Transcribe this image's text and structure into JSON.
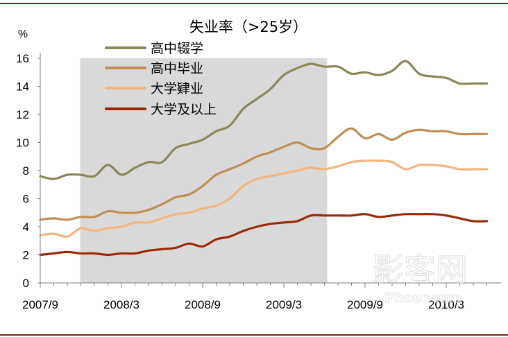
{
  "chart_data": {
    "type": "line",
    "title": "失业率（>25岁）",
    "ylabel": "%",
    "xlabel": "",
    "ylim": [
      0,
      16
    ],
    "yticks": [
      0,
      2,
      4,
      6,
      8,
      10,
      12,
      14,
      16
    ],
    "x_tick_labels": [
      "2007/9",
      "2008/3",
      "2008/9",
      "2009/3",
      "2009/9",
      "2010/3"
    ],
    "shaded_region": {
      "start": "2007/12",
      "end": "2009/6"
    },
    "x": [
      "2007/9",
      "2007/10",
      "2007/11",
      "2007/12",
      "2008/1",
      "2008/2",
      "2008/3",
      "2008/4",
      "2008/5",
      "2008/6",
      "2008/7",
      "2008/8",
      "2008/9",
      "2008/10",
      "2008/11",
      "2008/12",
      "2009/1",
      "2009/2",
      "2009/3",
      "2009/4",
      "2009/5",
      "2009/6",
      "2009/7",
      "2009/8",
      "2009/9",
      "2009/10",
      "2009/11",
      "2009/12",
      "2010/1",
      "2010/2",
      "2010/3",
      "2010/4",
      "2010/5",
      "2010/6"
    ],
    "legend_position": "top-left",
    "grid": false,
    "series": [
      {
        "name": "高中辍学",
        "color": "#8c8755",
        "values": [
          7.6,
          7.4,
          7.7,
          7.7,
          7.6,
          8.4,
          7.7,
          8.2,
          8.6,
          8.6,
          9.6,
          9.9,
          10.2,
          10.8,
          11.2,
          12.4,
          13.1,
          13.8,
          14.8,
          15.3,
          15.6,
          15.4,
          15.4,
          14.9,
          15.0,
          14.8,
          15.1,
          15.8,
          14.9,
          14.7,
          14.6,
          14.2,
          14.2,
          14.2
        ]
      },
      {
        "name": "高中毕业",
        "color": "#c08d52",
        "values": [
          4.5,
          4.6,
          4.5,
          4.7,
          4.7,
          5.1,
          5.0,
          5.0,
          5.2,
          5.6,
          6.1,
          6.3,
          6.9,
          7.7,
          8.1,
          8.5,
          9.0,
          9.3,
          9.7,
          10.0,
          9.6,
          9.6,
          10.4,
          11.0,
          10.3,
          10.6,
          10.2,
          10.7,
          10.9,
          10.8,
          10.8,
          10.6,
          10.6,
          10.6
        ]
      },
      {
        "name": "大学肄业",
        "color": "#f5b47d",
        "values": [
          3.4,
          3.5,
          3.3,
          3.9,
          3.7,
          3.9,
          4.0,
          4.3,
          4.3,
          4.6,
          4.9,
          5.0,
          5.3,
          5.5,
          6.0,
          6.9,
          7.4,
          7.6,
          7.8,
          8.0,
          8.2,
          8.1,
          8.3,
          8.6,
          8.7,
          8.7,
          8.6,
          8.1,
          8.4,
          8.4,
          8.3,
          8.1,
          8.1,
          8.1
        ]
      },
      {
        "name": "大学及以上",
        "color": "#9a2a07",
        "values": [
          2.0,
          2.1,
          2.2,
          2.1,
          2.1,
          2.0,
          2.1,
          2.1,
          2.3,
          2.4,
          2.5,
          2.8,
          2.6,
          3.1,
          3.3,
          3.7,
          4.0,
          4.2,
          4.3,
          4.4,
          4.8,
          4.8,
          4.8,
          4.8,
          4.9,
          4.7,
          4.8,
          4.9,
          4.9,
          4.9,
          4.8,
          4.6,
          4.4,
          4.4
        ]
      }
    ]
  },
  "watermark": {
    "text": "影客网",
    "subtext": "Phoer.com"
  }
}
